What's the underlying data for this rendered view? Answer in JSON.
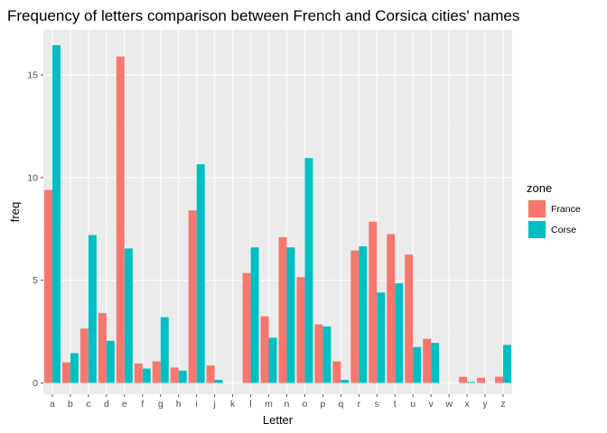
{
  "chart_data": {
    "type": "bar",
    "title": "Frequency of letters comparison between French and Corsica cities' names",
    "xlabel": "Letter",
    "ylabel": "freq",
    "ylim": [
      -0.55,
      17.2
    ],
    "yticks": [
      0,
      5,
      10,
      15
    ],
    "categories": [
      "a",
      "b",
      "c",
      "d",
      "e",
      "f",
      "g",
      "h",
      "i",
      "j",
      "k",
      "l",
      "m",
      "n",
      "o",
      "p",
      "q",
      "r",
      "s",
      "t",
      "u",
      "v",
      "w",
      "x",
      "y",
      "z"
    ],
    "legend": {
      "title": "zone",
      "position": "right"
    },
    "grid": true,
    "series": [
      {
        "name": "France",
        "color": "#F8766D",
        "values": [
          9.4,
          1.0,
          2.65,
          3.4,
          15.9,
          0.95,
          1.05,
          0.75,
          8.4,
          0.85,
          0.0,
          5.35,
          3.25,
          7.1,
          5.15,
          2.85,
          1.05,
          6.45,
          7.85,
          7.25,
          6.25,
          2.15,
          0.0,
          0.3,
          0.25,
          0.3
        ]
      },
      {
        "name": "Corse",
        "color": "#00BFC4",
        "values": [
          16.45,
          1.45,
          7.2,
          2.05,
          6.55,
          0.7,
          3.2,
          0.6,
          10.65,
          0.15,
          0.0,
          6.6,
          2.2,
          6.6,
          10.95,
          2.75,
          0.15,
          6.65,
          4.4,
          4.85,
          1.75,
          1.95,
          0.0,
          0.05,
          0.0,
          1.85
        ]
      }
    ]
  }
}
